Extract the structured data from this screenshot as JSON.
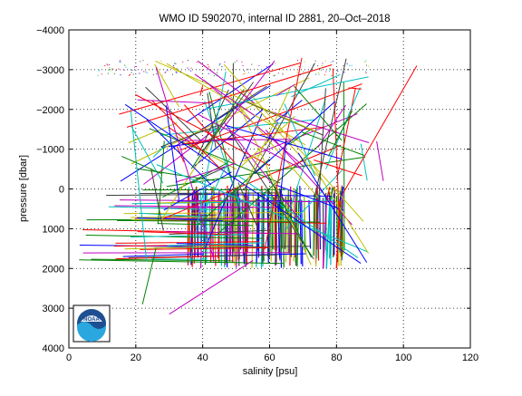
{
  "chart_data": {
    "type": "line",
    "title": "WMO ID 5902070, internal ID 2881, 20–Oct–2018",
    "xlabel": "salinity [psu]",
    "ylabel": "pressure [dbar]",
    "xlim": [
      0,
      120
    ],
    "ylim": [
      -4000,
      4000
    ],
    "y_axis_reversed": true,
    "grid": true,
    "grid_style": "dotted",
    "xticks": [
      0,
      20,
      40,
      60,
      80,
      100,
      120
    ],
    "yticks": [
      -4000,
      -3000,
      -2000,
      -1000,
      0,
      1000,
      2000,
      3000,
      4000
    ],
    "xtick_labels": [
      "0",
      "20",
      "40",
      "60",
      "80",
      "100",
      "120"
    ],
    "ytick_labels": [
      "−4000",
      "−3000",
      "−2000",
      "−1000",
      "0",
      "1000",
      "2000",
      "3000",
      "4000"
    ],
    "series_colors": [
      "#0000ff",
      "#008000",
      "#ff0000",
      "#00bfbf",
      "#bf00bf",
      "#bfbf00",
      "#404040"
    ],
    "approx_profile_count": 200,
    "profile_summary": {
      "dense_band_pressure": [
        -100,
        2000
      ],
      "dense_band_salinity": [
        35,
        82
      ],
      "near_surface_offsets": [
        82,
        79,
        78
      ],
      "outlier_extent_salinity": [
        3,
        104
      ],
      "outlier_extent_pressure": [
        -3300,
        3200
      ]
    },
    "logo": "noaa-logo"
  }
}
